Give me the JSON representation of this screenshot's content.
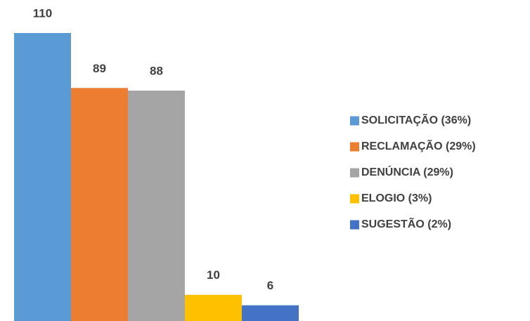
{
  "chart_data": {
    "type": "bar",
    "series": [
      {
        "name": "SOLICITAÇÃO (36%)",
        "color": "#5b9bd5",
        "values": [
          110
        ]
      },
      {
        "name": "RECLAMAÇÃO (29%)",
        "color": "#ed7d31",
        "values": [
          89
        ]
      },
      {
        "name": "DENÚNCIA (29%)",
        "color": "#a5a5a5",
        "values": [
          88
        ]
      },
      {
        "name": "ELOGIO (3%)",
        "color": "#ffc000",
        "values": [
          10
        ]
      },
      {
        "name": "SUGESTÃO (2%)",
        "color": "#4472c4",
        "values": [
          6
        ]
      }
    ]
  }
}
